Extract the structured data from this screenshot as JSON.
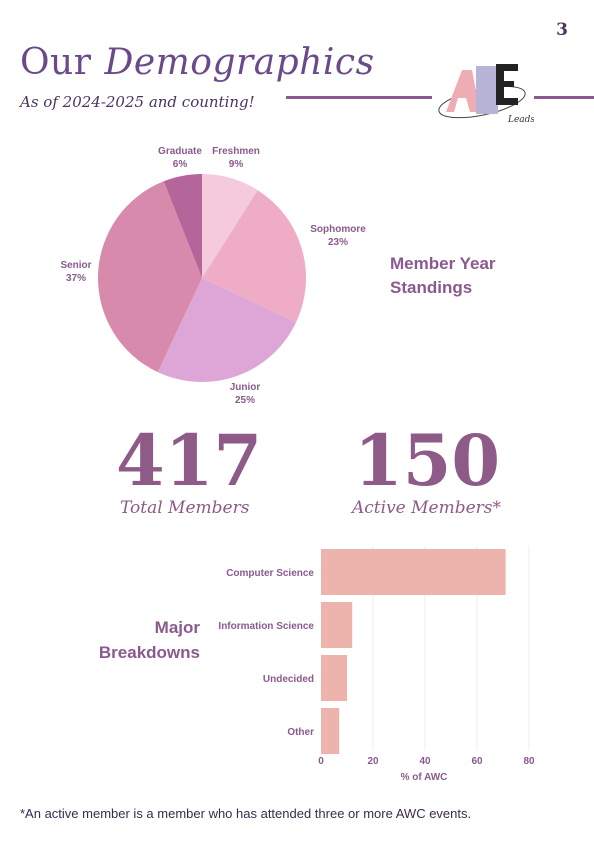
{
  "page_number": "3",
  "header": {
    "title_part1": "Our",
    "title_part2": "Demographics",
    "subtitle": "As of 2024-2025 and counting!",
    "logo_text": "AWC"
  },
  "colors": {
    "accent": "#8a5a8e",
    "bar": "#edb3ad",
    "text_dark": "#4a3560"
  },
  "year_section": {
    "heading_line1": "Member Year",
    "heading_line2": "Standings"
  },
  "stats": {
    "total_value": "417",
    "total_label": "Total Members",
    "active_value": "150",
    "active_label": "Active Members*"
  },
  "majors_section": {
    "heading_line1": "Major",
    "heading_line2": "Breakdowns"
  },
  "footnote": "*An active member is a member who has attended three or more AWC events.",
  "chart_data": [
    {
      "type": "pie",
      "slices": [
        {
          "label": "Freshmen",
          "value": 9,
          "pct_label": "9%",
          "color": "#f5cadc"
        },
        {
          "label": "Sophomore",
          "value": 23,
          "pct_label": "23%",
          "color": "#eeadc4"
        },
        {
          "label": "Junior",
          "value": 25,
          "pct_label": "25%",
          "color": "#dda6d6"
        },
        {
          "label": "Senior",
          "value": 37,
          "pct_label": "37%",
          "color": "#d88aac"
        },
        {
          "label": "Graduate",
          "value": 6,
          "pct_label": "6%",
          "color": "#b4669a"
        }
      ]
    },
    {
      "type": "bar",
      "orientation": "horizontal",
      "categories": [
        "Computer Science",
        "Information Science",
        "Undecided",
        "Other"
      ],
      "values": [
        71,
        12,
        10,
        7
      ],
      "xlabel": "% of AWC",
      "xlim": [
        0,
        80
      ],
      "xticks": [
        "0",
        "20",
        "40",
        "60",
        "80"
      ],
      "grid": true
    }
  ]
}
